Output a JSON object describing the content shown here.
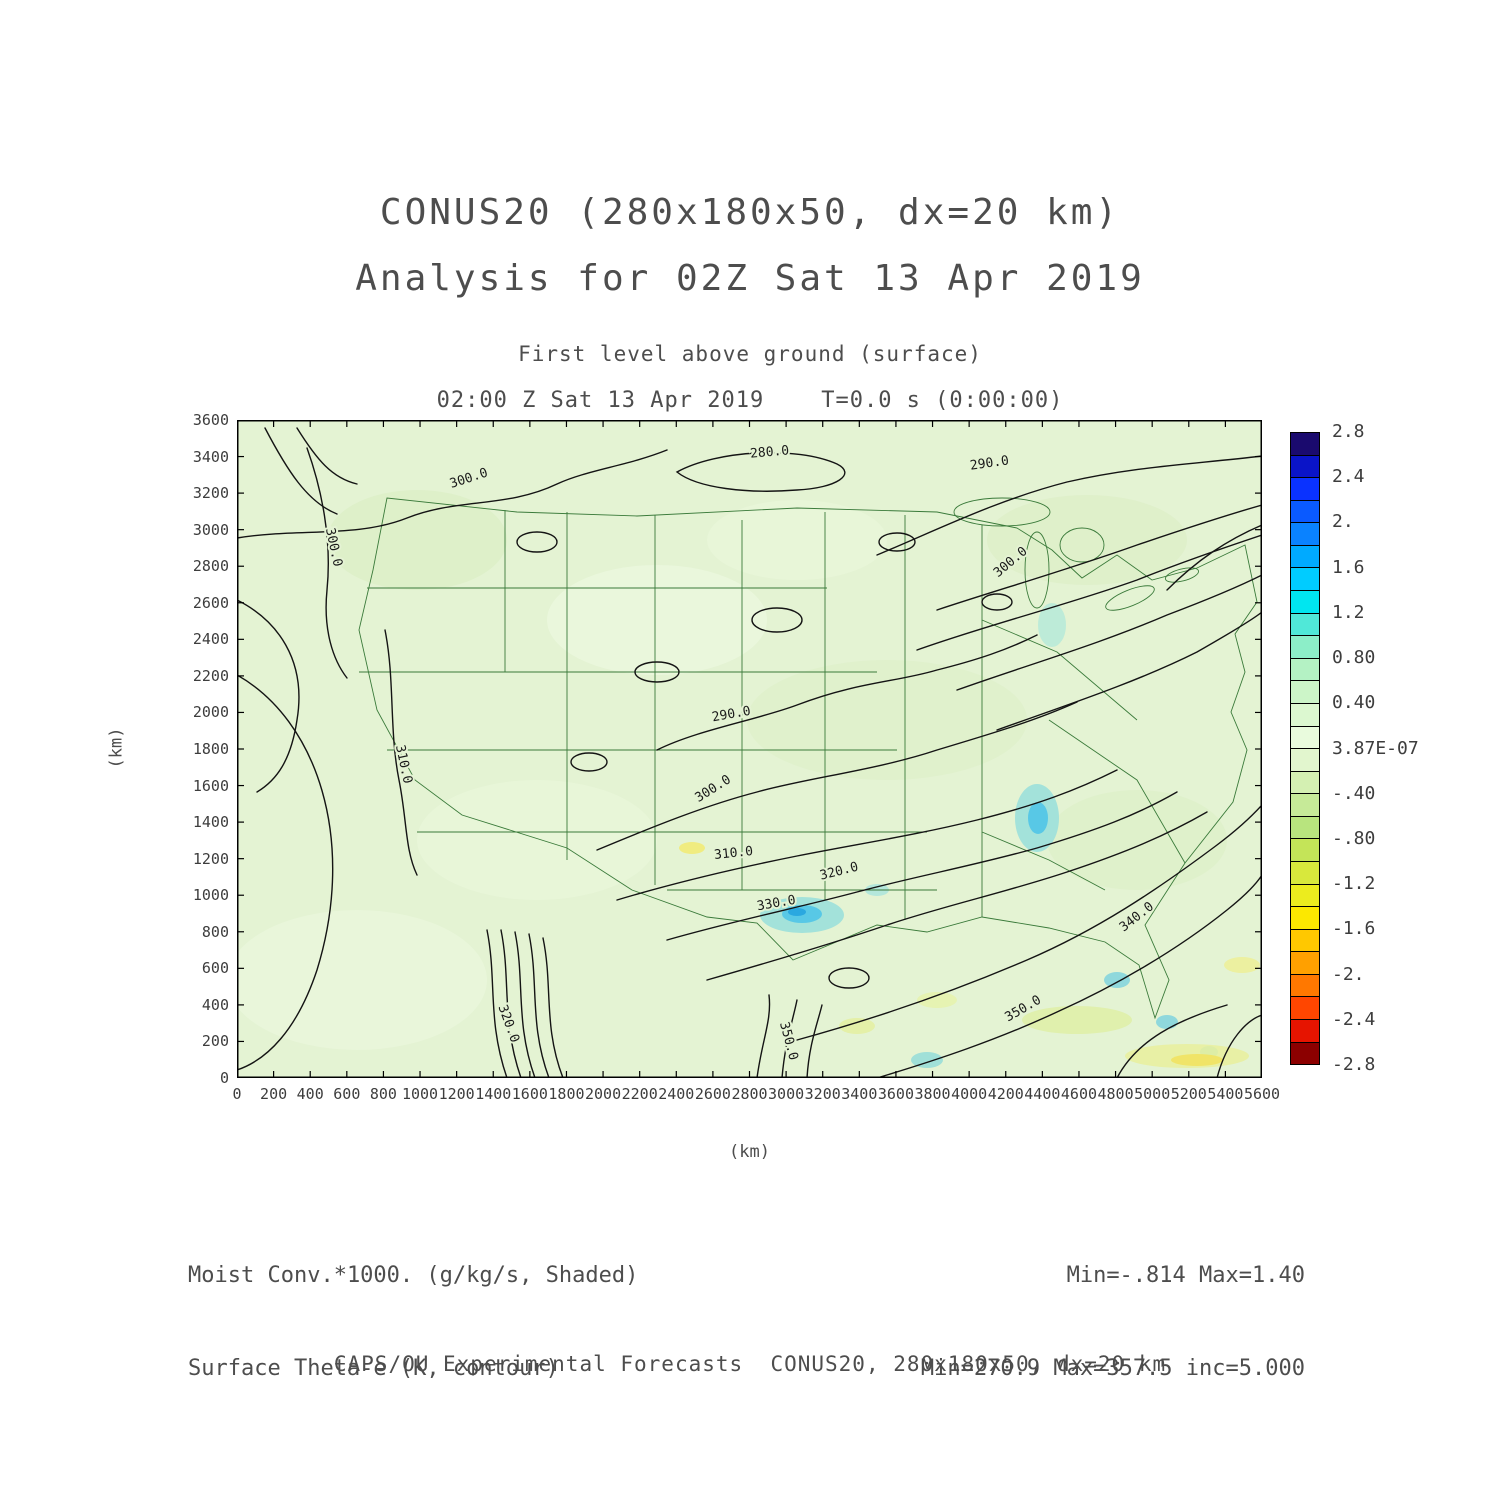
{
  "page": {
    "title_line1": "CONUS20 (280x180x50, dx=20 km)",
    "title_line2": "Analysis for 02Z Sat 13 Apr 2019",
    "subtitle_line1": "First level above ground (surface)",
    "subtitle_line2": "02:00 Z Sat 13 Apr 2019    T=0.0 s (0:00:00)",
    "footer": "CAPS/OU Experimental Forecasts  CONUS20, 280x180x50, dx=20 km"
  },
  "annotations": {
    "field1": "Moist Conv.*1000. (g/kg/s, Shaded)",
    "field2": "Surface Theta-e (K, contour)",
    "stats1": "Min=-.814 Max=1.40",
    "stats2": "Min=270.9 Max=357.5 inc=5.000"
  },
  "chart_data": {
    "type": "heatmap",
    "title": "CONUS20 (280x180x50, dx=20 km) Analysis for 02Z Sat 13 Apr 2019",
    "subtitle": "First level above ground (surface), 02:00 Z Sat 13 Apr 2019, T=0.0 s (0:00:00)",
    "xlabel": "(km)",
    "ylabel": "(km)",
    "xlim": [
      0,
      5600
    ],
    "ylim": [
      0,
      3600
    ],
    "x_ticks": [
      0,
      200,
      400,
      600,
      800,
      1000,
      1200,
      1400,
      1600,
      1800,
      2000,
      2200,
      2400,
      2600,
      2800,
      3000,
      3200,
      3400,
      3600,
      3800,
      4000,
      4200,
      4400,
      4600,
      4800,
      5000,
      5200,
      5400,
      5600
    ],
    "y_ticks": [
      0,
      200,
      400,
      600,
      800,
      1000,
      1200,
      1400,
      1600,
      1800,
      2000,
      2200,
      2400,
      2600,
      2800,
      3000,
      3200,
      3400,
      3600
    ],
    "grid": false,
    "shaded_field": {
      "name": "Moist Conv.*1000. (g/kg/s, Shaded)",
      "min": -0.814,
      "max": 1.4
    },
    "contour_field": {
      "name": "Surface Theta-e (K, contour)",
      "min": 270.9,
      "max": 357.5,
      "interval": 5.0
    },
    "contour_levels_labeled": [
      280.0,
      290.0,
      300.0,
      310.0,
      320.0,
      330.0,
      340.0,
      350.0
    ],
    "contour_labels": [
      {
        "text": "300.0",
        "x": 233,
        "y": 62,
        "rot": -18
      },
      {
        "text": "280.0",
        "x": 533,
        "y": 36,
        "rot": -5
      },
      {
        "text": "290.0",
        "x": 753,
        "y": 47,
        "rot": -8
      },
      {
        "text": "300.0",
        "x": 93,
        "y": 128,
        "rot": 78
      },
      {
        "text": "300.0",
        "x": 776,
        "y": 145,
        "rot": -40
      },
      {
        "text": "310.0",
        "x": 163,
        "y": 345,
        "rot": 78
      },
      {
        "text": "290.0",
        "x": 495,
        "y": 298,
        "rot": -10
      },
      {
        "text": "300.0",
        "x": 478,
        "y": 372,
        "rot": -32
      },
      {
        "text": "310.0",
        "x": 497,
        "y": 437,
        "rot": -6
      },
      {
        "text": "320.0",
        "x": 603,
        "y": 455,
        "rot": -14
      },
      {
        "text": "330.0",
        "x": 540,
        "y": 487,
        "rot": -10
      },
      {
        "text": "340.0",
        "x": 902,
        "y": 500,
        "rot": -38
      },
      {
        "text": "350.0",
        "x": 788,
        "y": 592,
        "rot": -30
      },
      {
        "text": "350.0",
        "x": 548,
        "y": 622,
        "rot": 75
      },
      {
        "text": "320.0",
        "x": 268,
        "y": 605,
        "rot": 70
      }
    ],
    "colorbar": {
      "position": "right",
      "labels": [
        "2.8",
        "2.4",
        "2.",
        "1.6",
        "1.2",
        "0.80",
        "0.40",
        "3.87E-07",
        "-.40",
        "-.80",
        "-1.2",
        "-1.6",
        "-2.",
        "-2.4",
        "-2.8"
      ],
      "colors": [
        "#1a0a6e",
        "#0a14c8",
        "#0a32ff",
        "#0a5aff",
        "#0a82ff",
        "#00aaff",
        "#00ccff",
        "#00e6f0",
        "#50e8d8",
        "#8ceec8",
        "#b4f2c4",
        "#ccf5c8",
        "#dcf8d0",
        "#e9fbdd",
        "#e2f6ce",
        "#d4f0b2",
        "#c6ea98",
        "#b8e47e",
        "#c4e458",
        "#d8e83c",
        "#ecec1e",
        "#fce800",
        "#ffc800",
        "#ffa000",
        "#ff7800",
        "#ff4600",
        "#e61400",
        "#8c0000"
      ]
    }
  }
}
